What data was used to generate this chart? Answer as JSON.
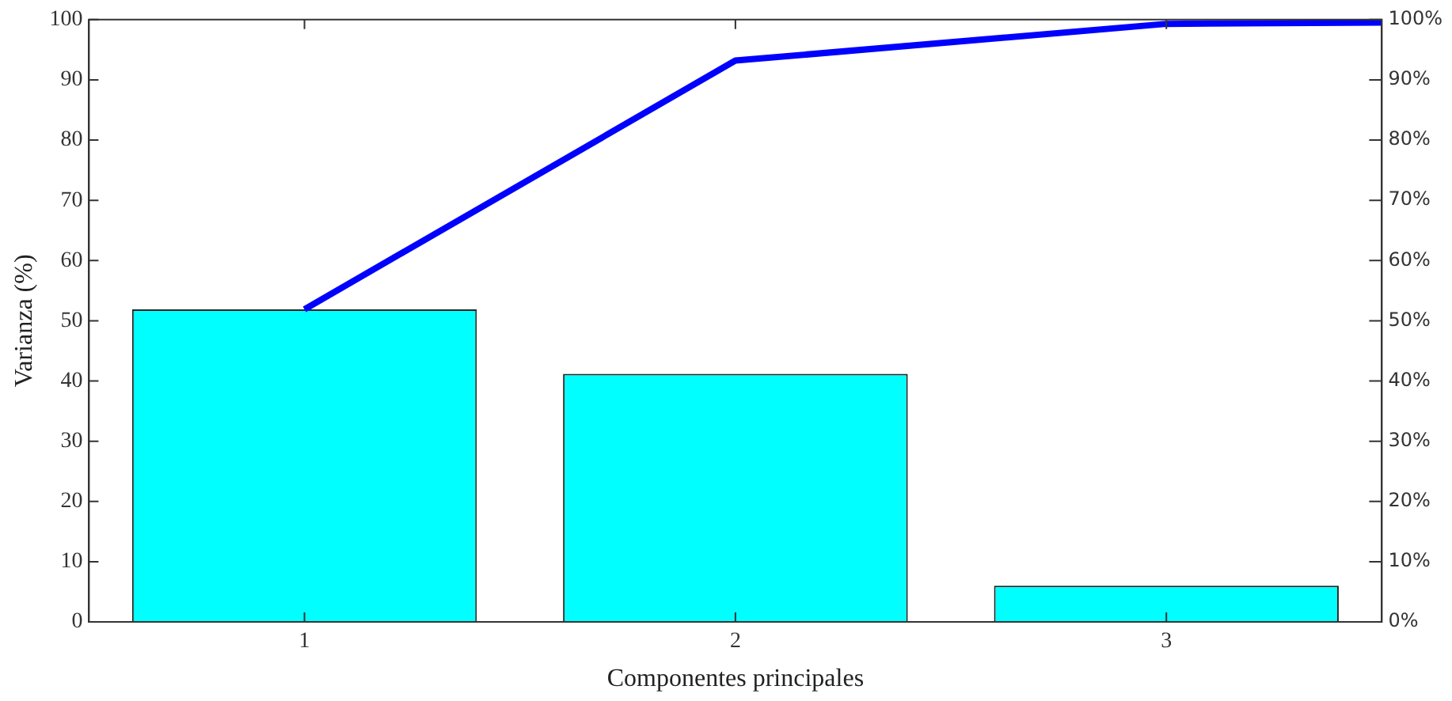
{
  "chart_data": {
    "type": "bar",
    "xlabel": "Componentes principales",
    "ylabel": "Varianza (%)",
    "x": [
      1,
      2,
      3
    ],
    "xlim": [
      0.5,
      3.5
    ],
    "xticks": [
      1,
      2,
      3
    ],
    "ylim": [
      0,
      100
    ],
    "yticks": [
      0,
      10,
      20,
      30,
      40,
      50,
      60,
      70,
      80,
      90,
      100
    ],
    "y2lim": [
      0,
      100
    ],
    "y2ticks": [
      {
        "value": 0,
        "label": "0%"
      },
      {
        "value": 10,
        "label": "10%"
      },
      {
        "value": 20,
        "label": "20%"
      },
      {
        "value": 30,
        "label": "30%"
      },
      {
        "value": 40,
        "label": "40%"
      },
      {
        "value": 50,
        "label": "50%"
      },
      {
        "value": 60,
        "label": "60%"
      },
      {
        "value": 70,
        "label": "70%"
      },
      {
        "value": 80,
        "label": "80%"
      },
      {
        "value": 90,
        "label": "90%"
      },
      {
        "value": 100,
        "label": "100%"
      }
    ],
    "series": [
      {
        "color": "#00ffff",
        "values": [
          51.9,
          41.2,
          6.0
        ]
      },
      {
        "type": "line",
        "axis": "y2",
        "color": "#0000ff",
        "x": [
          1,
          2,
          3,
          3.5
        ],
        "values": [
          51.9,
          93.2,
          99.3,
          99.5
        ]
      }
    ],
    "grid": false,
    "legend": false
  }
}
